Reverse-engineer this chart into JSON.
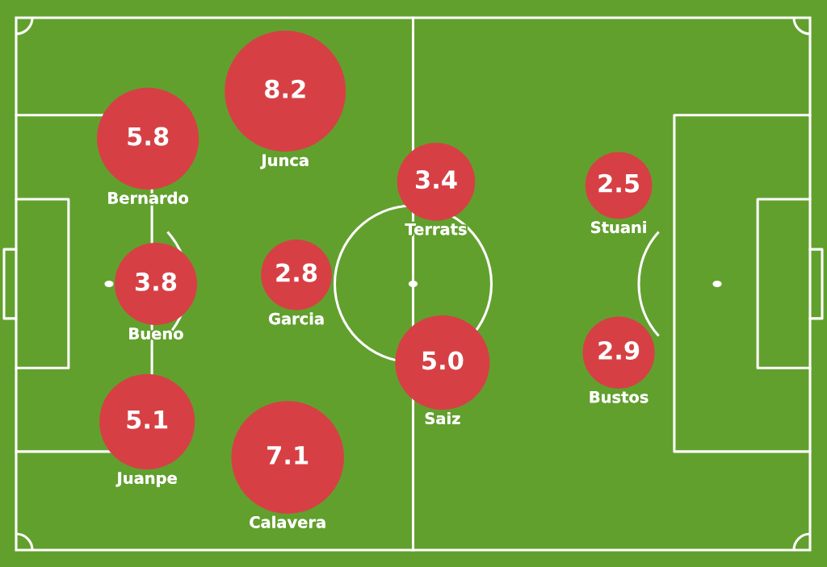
{
  "chart_data": {
    "type": "other",
    "color": "#d64045",
    "categories": [
      "Bernardo",
      "Junca",
      "Bueno",
      "Garcia",
      "Juanpe",
      "Calavera",
      "Terrats",
      "Saiz",
      "Stuani",
      "Bustos"
    ],
    "values": [
      5.8,
      8.2,
      3.8,
      2.8,
      5.1,
      7.1,
      3.4,
      5.0,
      2.5,
      2.9
    ],
    "value_labels": [
      "5.8",
      "8.2",
      "3.8",
      "2.8",
      "5.1",
      "7.1",
      "3.4",
      "5.0",
      "2.5",
      "2.9"
    ]
  }
}
